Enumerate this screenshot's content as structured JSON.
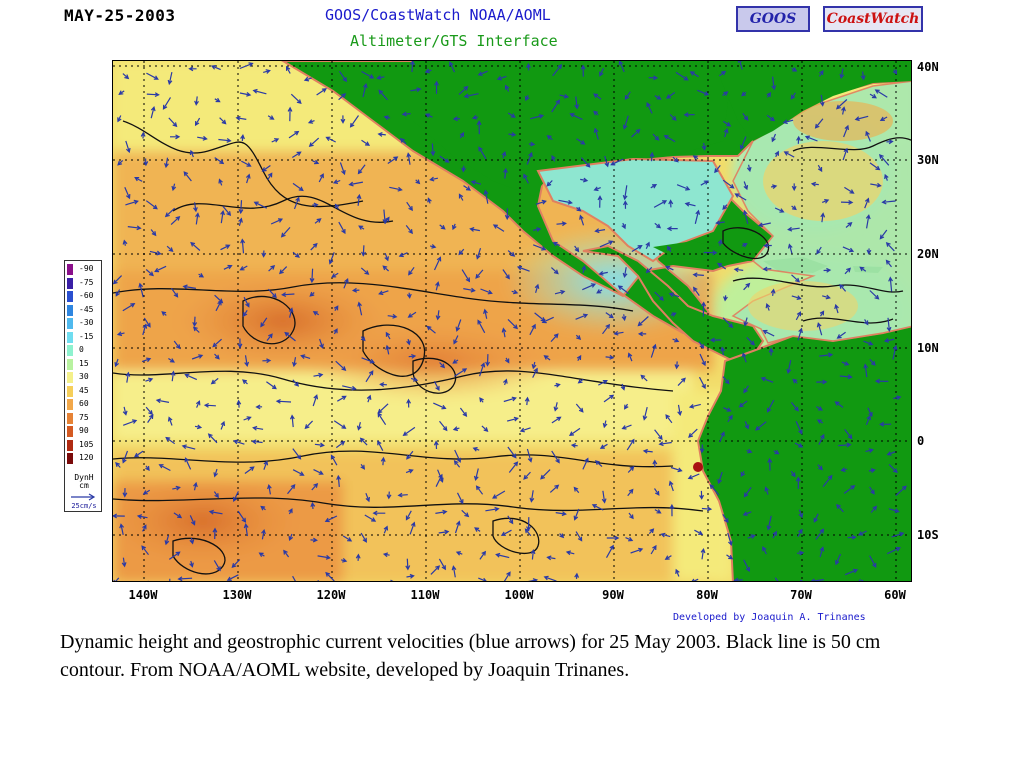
{
  "header": {
    "date": "MAY-25-2003",
    "title_line1": "GOOS/CoastWatch  NOAA/AOML",
    "title_line2": "Altimeter/GTS Interface",
    "logo_left": "GOOS",
    "logo_right": "CoastWatch"
  },
  "map": {
    "latitude_labels": [
      "40N",
      "30N",
      "20N",
      "10N",
      "0",
      "10S"
    ],
    "longitude_labels": [
      "140W",
      "130W",
      "120W",
      "110W",
      "100W",
      "90W",
      "80W",
      "70W",
      "60W"
    ],
    "colors": {
      "land": "#119911",
      "arrow": "#2a3aa6",
      "contour": "#111111",
      "grid": "#000000"
    }
  },
  "legend": {
    "entries": [
      {
        "value": "-90",
        "color": "#8a0f8a"
      },
      {
        "value": "-75",
        "color": "#3a1fa6"
      },
      {
        "value": "-60",
        "color": "#2a4fd0"
      },
      {
        "value": "-45",
        "color": "#2f86e0"
      },
      {
        "value": "-30",
        "color": "#4fb9ee"
      },
      {
        "value": "-15",
        "color": "#6fddf0"
      },
      {
        "value": "0",
        "color": "#8ef2cf"
      },
      {
        "value": "15",
        "color": "#b8f2a0"
      },
      {
        "value": "30",
        "color": "#f4f08a"
      },
      {
        "value": "45",
        "color": "#f6cf5a"
      },
      {
        "value": "60",
        "color": "#f2a84a"
      },
      {
        "value": "75",
        "color": "#e68235"
      },
      {
        "value": "90",
        "color": "#d45a22"
      },
      {
        "value": "105",
        "color": "#b02b12"
      },
      {
        "value": "120",
        "color": "#7a0a0a"
      }
    ],
    "unit_line1": "DynH",
    "unit_line2": "cm",
    "arrow_scale": "25cm/s"
  },
  "credit": "Developed by Joaquin A. Trinanes",
  "caption": "Dynamic height and geostrophic current velocities (blue arrows) for 25 May 2003. Black line is 50 cm contour.  From NOAA/AOML website, developed by Joaquin Trinanes."
}
